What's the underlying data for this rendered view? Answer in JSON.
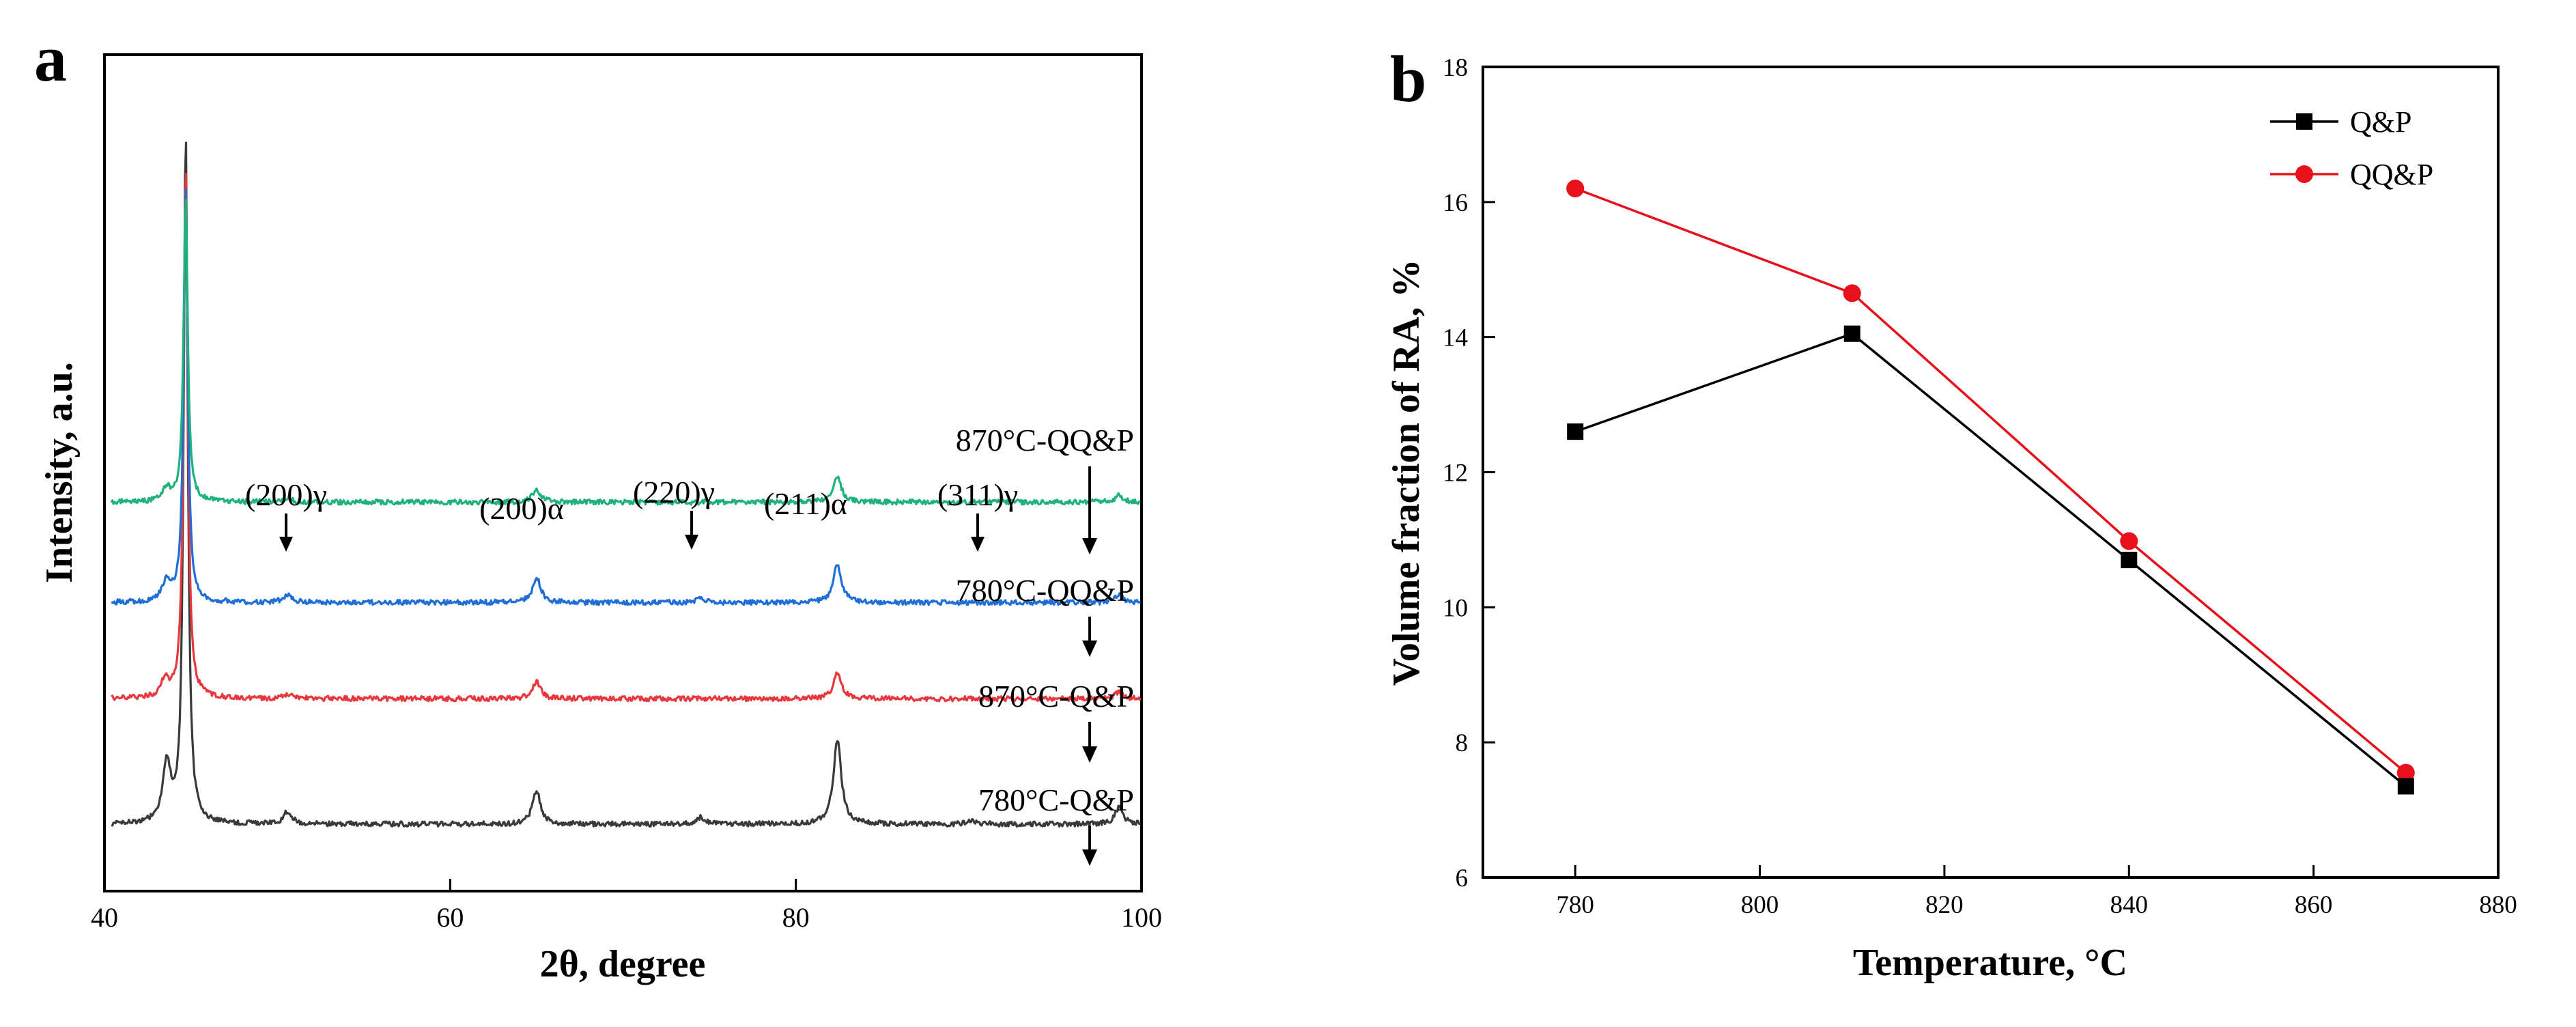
{
  "chart_data": [
    {
      "panel": "a",
      "type": "line",
      "title": "",
      "xlabel": "2θ, degree",
      "ylabel": "Intensity, a.u.",
      "xlim": [
        40,
        100
      ],
      "xticks": [
        40,
        60,
        80,
        100
      ],
      "grid": false,
      "series": [
        {
          "name": "780°C-Q&P",
          "color": "#3a3a3a",
          "baseline": 0.08,
          "peaks": [
            [
              43.6,
              0.07
            ],
            [
              44.7,
              0.83
            ],
            [
              50.6,
              0.015
            ],
            [
              65.0,
              0.04
            ],
            [
              74.5,
              0.008
            ],
            [
              82.4,
              0.1
            ],
            [
              90.2,
              0.005
            ],
            [
              98.7,
              0.02
            ]
          ]
        },
        {
          "name": "870°C-Q&P",
          "color": "#e8383d",
          "baseline": 0.23,
          "peaks": [
            [
              43.5,
              0.02
            ],
            [
              44.7,
              0.64
            ],
            [
              50.6,
              0.005
            ],
            [
              65.0,
              0.02
            ],
            [
              82.4,
              0.03
            ],
            [
              98.7,
              0.008
            ]
          ]
        },
        {
          "name": "780°C-QQ&P",
          "color": "#1f6fd6",
          "baseline": 0.345,
          "peaks": [
            [
              43.6,
              0.025
            ],
            [
              44.7,
              0.5
            ],
            [
              50.6,
              0.01
            ],
            [
              65.0,
              0.03
            ],
            [
              74.5,
              0.006
            ],
            [
              82.4,
              0.045
            ],
            [
              98.7,
              0.01
            ]
          ]
        },
        {
          "name": "870°C-QQ&P",
          "color": "#1fb27a",
          "baseline": 0.465,
          "peaks": [
            [
              43.6,
              0.015
            ],
            [
              44.7,
              0.37
            ],
            [
              50.6,
              0.005
            ],
            [
              65.0,
              0.015
            ],
            [
              82.4,
              0.03
            ],
            [
              98.7,
              0.008
            ]
          ]
        }
      ],
      "annotations": [
        "(200)γ",
        "(200)α",
        "(220)γ",
        "(211)α",
        "(311)γ"
      ]
    },
    {
      "panel": "b",
      "type": "line",
      "title": "",
      "xlabel": "Temperature, °C",
      "ylabel": "Volume fraction of RA, %",
      "xlim": [
        770,
        880
      ],
      "ylim": [
        6,
        18
      ],
      "xticks": [
        780,
        800,
        820,
        840,
        860,
        880
      ],
      "yticks": [
        6,
        8,
        10,
        12,
        14,
        16,
        18
      ],
      "grid": false,
      "legend": "top-right",
      "x": [
        780,
        810,
        840,
        870
      ],
      "series": [
        {
          "name": "Q&P",
          "color": "#000000",
          "marker": "square",
          "values": [
            12.6,
            14.05,
            10.7,
            7.35
          ]
        },
        {
          "name": "QQ&P",
          "color": "#e8101a",
          "marker": "circle",
          "values": [
            16.2,
            14.65,
            10.98,
            7.55
          ]
        }
      ]
    }
  ]
}
